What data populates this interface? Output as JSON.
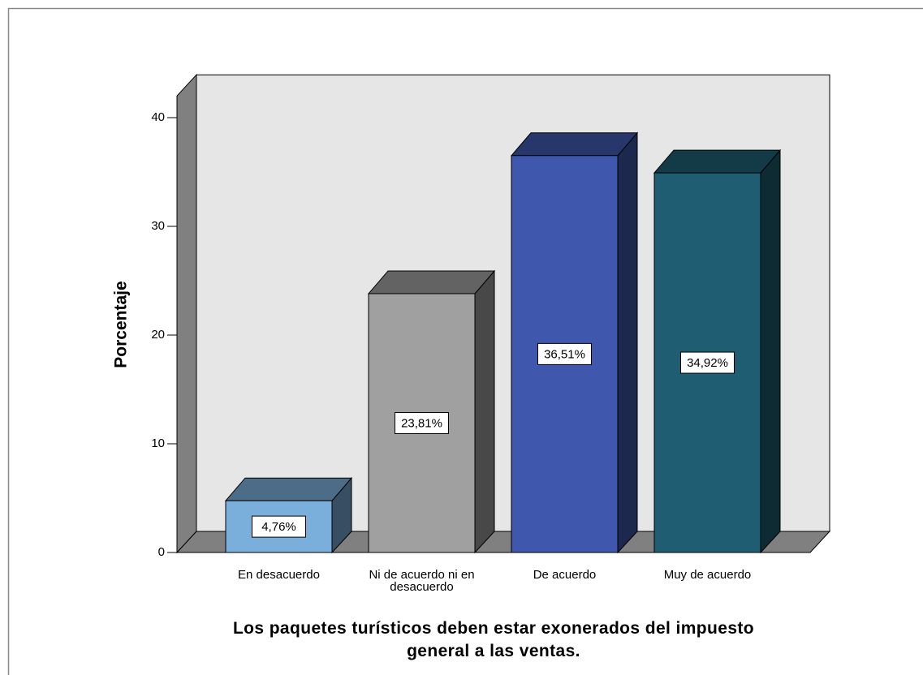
{
  "chart_data": {
    "type": "bar3d",
    "x_label": "Los paquetes turísticos deben estar exonerados del impuesto general a las ventas.",
    "y_label": "Porcentaje",
    "categories": [
      "En desacuerdo",
      "Ni de acuerdo ni en desacuerdo",
      "De acuerdo",
      "Muy de acuerdo"
    ],
    "values": [
      4.76,
      23.81,
      36.51,
      34.92
    ],
    "value_labels": [
      "4,76%",
      "23,81%",
      "36,51%",
      "34,92%"
    ],
    "colors": [
      "#7aaedb",
      "#a0a0a0",
      "#3f58ad",
      "#1f5d72"
    ],
    "ylim": [
      0,
      42
    ],
    "yticks": [
      0,
      10,
      20,
      30,
      40
    ],
    "grid": false
  }
}
